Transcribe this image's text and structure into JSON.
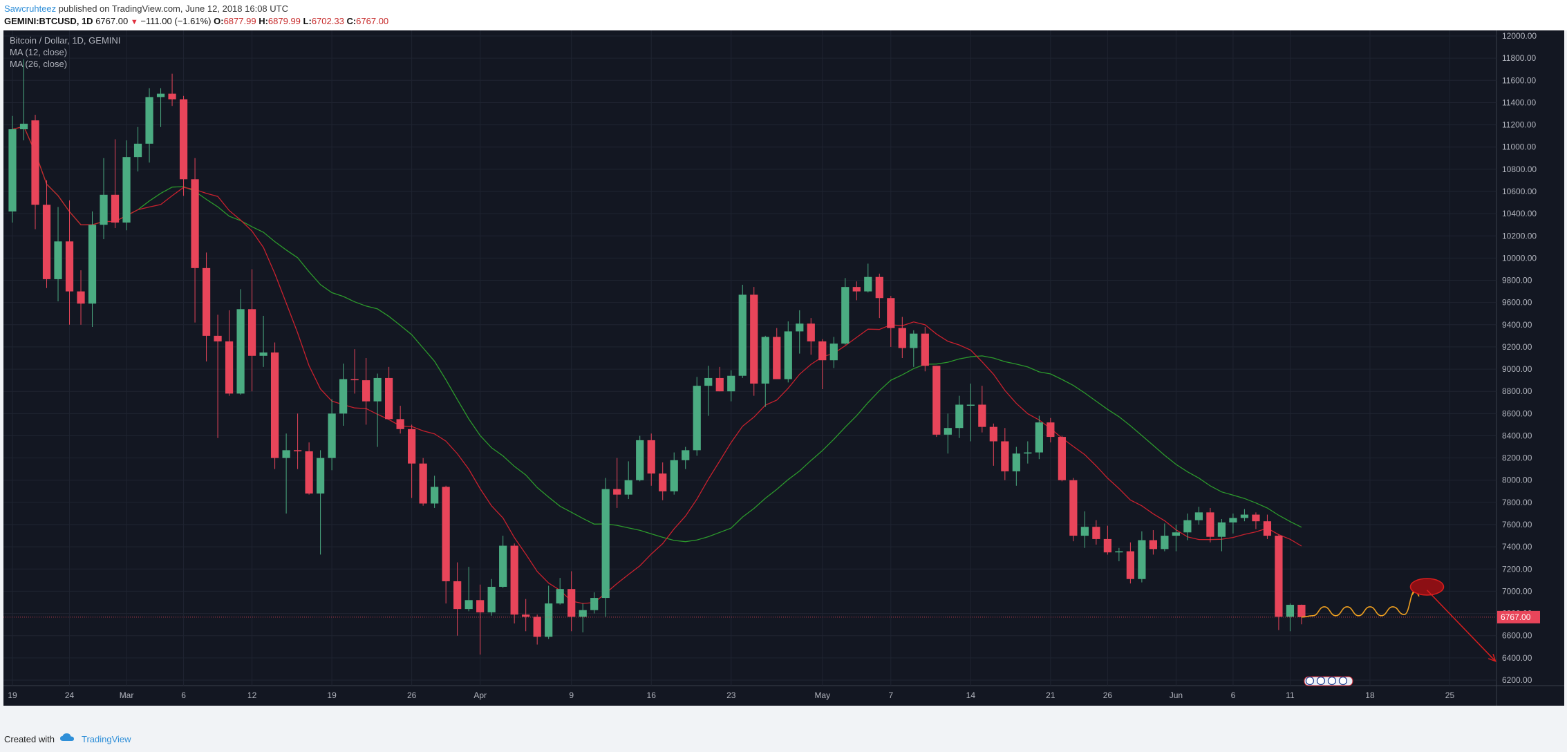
{
  "header": {
    "author": "Sawcruhteez",
    "published_text": "published on TradingView.com, June 12, 2018 16:08 UTC",
    "symbol": "GEMINI:BTCUSD, 1D",
    "last": "6767.00",
    "change": "−111.00 (−1.61%)",
    "o_label": "O:",
    "o_value": "6877.99",
    "h_label": "H:",
    "h_value": "6879.99",
    "l_label": "L:",
    "l_value": "6702.33",
    "c_label": "C:",
    "c_value": "6767.00"
  },
  "legend": {
    "title": "Bitcoin / Dollar, 1D, GEMINI",
    "ma12": "MA (12, close)",
    "ma26": "MA (26, close)"
  },
  "footer": {
    "created_with": "Created with",
    "brand": "TradingView"
  },
  "colors": {
    "background": "#131722",
    "grid": "#1f2431",
    "bull": "#4bac82",
    "bear": "#e8455a",
    "ma12": "#c9212e",
    "ma26": "#2c9a2c",
    "annotation_orange": "#f0a020",
    "annotation_red": "#d81e1e"
  },
  "chart_data": {
    "type": "candlestick",
    "title": "Bitcoin / Dollar, 1D, GEMINI",
    "y_axis_side": "right",
    "ylim": [
      6150,
      12050
    ],
    "y_ticks": [
      6200,
      6400,
      6600,
      6800,
      7000,
      7200,
      7400,
      7600,
      7800,
      8000,
      8200,
      8400,
      8600,
      8800,
      9000,
      9200,
      9400,
      9600,
      9800,
      10000,
      10200,
      10400,
      10600,
      10800,
      11000,
      11200,
      11400,
      11600,
      11800,
      12000
    ],
    "y_tick_labels": [
      "6200.00",
      "6400.00",
      "6600.00",
      "6800.00",
      "7000.00",
      "7200.00",
      "7400.00",
      "7600.00",
      "7800.00",
      "8000.00",
      "8200.00",
      "8400.00",
      "8600.00",
      "8800.00",
      "9000.00",
      "9200.00",
      "9400.00",
      "9600.00",
      "9800.00",
      "10000.00",
      "10200.00",
      "10400.00",
      "10600.00",
      "10800.00",
      "11000.00",
      "11200.00",
      "11400.00",
      "11600.00",
      "11800.00",
      "12000.00"
    ],
    "x_range": [
      "2018-02-19",
      "2018-06-28"
    ],
    "x_ticks": [
      {
        "date": "2018-02-19",
        "label": "19"
      },
      {
        "date": "2018-02-24",
        "label": "24"
      },
      {
        "date": "2018-03-01",
        "label": "Mar"
      },
      {
        "date": "2018-03-06",
        "label": "6"
      },
      {
        "date": "2018-03-12",
        "label": "12"
      },
      {
        "date": "2018-03-19",
        "label": "19"
      },
      {
        "date": "2018-03-26",
        "label": "26"
      },
      {
        "date": "2018-04-01",
        "label": "Apr"
      },
      {
        "date": "2018-04-09",
        "label": "9"
      },
      {
        "date": "2018-04-16",
        "label": "16"
      },
      {
        "date": "2018-04-23",
        "label": "23"
      },
      {
        "date": "2018-05-01",
        "label": "May"
      },
      {
        "date": "2018-05-07",
        "label": "7"
      },
      {
        "date": "2018-05-14",
        "label": "14"
      },
      {
        "date": "2018-05-21",
        "label": "21"
      },
      {
        "date": "2018-05-26",
        "label": "26"
      },
      {
        "date": "2018-06-01",
        "label": "Jun"
      },
      {
        "date": "2018-06-06",
        "label": "6"
      },
      {
        "date": "2018-06-11",
        "label": "11"
      },
      {
        "date": "2018-06-18",
        "label": "18"
      },
      {
        "date": "2018-06-25",
        "label": "25"
      }
    ],
    "candles": [
      {
        "d": "2018-02-19",
        "o": 10420,
        "h": 11280,
        "l": 10320,
        "c": 11160
      },
      {
        "d": "2018-02-20",
        "o": 11160,
        "h": 11790,
        "l": 11060,
        "c": 11210
      },
      {
        "d": "2018-02-21",
        "o": 11240,
        "h": 11290,
        "l": 10260,
        "c": 10480
      },
      {
        "d": "2018-02-22",
        "o": 10480,
        "h": 10700,
        "l": 9730,
        "c": 9810
      },
      {
        "d": "2018-02-23",
        "o": 9810,
        "h": 10460,
        "l": 9610,
        "c": 10150
      },
      {
        "d": "2018-02-24",
        "o": 10150,
        "h": 10520,
        "l": 9400,
        "c": 9700
      },
      {
        "d": "2018-02-25",
        "o": 9700,
        "h": 9890,
        "l": 9400,
        "c": 9590
      },
      {
        "d": "2018-02-26",
        "o": 9590,
        "h": 10420,
        "l": 9380,
        "c": 10300
      },
      {
        "d": "2018-02-27",
        "o": 10300,
        "h": 10900,
        "l": 10170,
        "c": 10570
      },
      {
        "d": "2018-02-28",
        "o": 10570,
        "h": 11070,
        "l": 10270,
        "c": 10320
      },
      {
        "d": "2018-03-01",
        "o": 10320,
        "h": 11060,
        "l": 10250,
        "c": 10910
      },
      {
        "d": "2018-03-02",
        "o": 10910,
        "h": 11180,
        "l": 10780,
        "c": 11030
      },
      {
        "d": "2018-03-03",
        "o": 11030,
        "h": 11530,
        "l": 10860,
        "c": 11450
      },
      {
        "d": "2018-03-04",
        "o": 11450,
        "h": 11530,
        "l": 11180,
        "c": 11480
      },
      {
        "d": "2018-03-05",
        "o": 11480,
        "h": 11660,
        "l": 11370,
        "c": 11430
      },
      {
        "d": "2018-03-06",
        "o": 11430,
        "h": 11460,
        "l": 10560,
        "c": 10710
      },
      {
        "d": "2018-03-07",
        "o": 10710,
        "h": 10900,
        "l": 9420,
        "c": 9910
      },
      {
        "d": "2018-03-08",
        "o": 9910,
        "h": 10050,
        "l": 9070,
        "c": 9300
      },
      {
        "d": "2018-03-09",
        "o": 9300,
        "h": 9490,
        "l": 8380,
        "c": 9250
      },
      {
        "d": "2018-03-10",
        "o": 9250,
        "h": 9530,
        "l": 8760,
        "c": 8780
      },
      {
        "d": "2018-03-11",
        "o": 8780,
        "h": 9720,
        "l": 8770,
        "c": 9540
      },
      {
        "d": "2018-03-12",
        "o": 9540,
        "h": 9900,
        "l": 8800,
        "c": 9120
      },
      {
        "d": "2018-03-13",
        "o": 9120,
        "h": 9480,
        "l": 9020,
        "c": 9150
      },
      {
        "d": "2018-03-14",
        "o": 9150,
        "h": 9240,
        "l": 8100,
        "c": 8200
      },
      {
        "d": "2018-03-15",
        "o": 8200,
        "h": 8420,
        "l": 7700,
        "c": 8270
      },
      {
        "d": "2018-03-16",
        "o": 8270,
        "h": 8600,
        "l": 8100,
        "c": 8260
      },
      {
        "d": "2018-03-17",
        "o": 8260,
        "h": 8340,
        "l": 7870,
        "c": 7880
      },
      {
        "d": "2018-03-18",
        "o": 7880,
        "h": 8270,
        "l": 7330,
        "c": 8200
      },
      {
        "d": "2018-03-19",
        "o": 8200,
        "h": 8730,
        "l": 8090,
        "c": 8600
      },
      {
        "d": "2018-03-20",
        "o": 8600,
        "h": 9050,
        "l": 8490,
        "c": 8910
      },
      {
        "d": "2018-03-21",
        "o": 8910,
        "h": 9180,
        "l": 8780,
        "c": 8900
      },
      {
        "d": "2018-03-22",
        "o": 8900,
        "h": 9100,
        "l": 8500,
        "c": 8710
      },
      {
        "d": "2018-03-23",
        "o": 8710,
        "h": 8960,
        "l": 8300,
        "c": 8920
      },
      {
        "d": "2018-03-24",
        "o": 8920,
        "h": 9020,
        "l": 8550,
        "c": 8550
      },
      {
        "d": "2018-03-25",
        "o": 8550,
        "h": 8670,
        "l": 8420,
        "c": 8460
      },
      {
        "d": "2018-03-26",
        "o": 8460,
        "h": 8500,
        "l": 7840,
        "c": 8150
      },
      {
        "d": "2018-03-27",
        "o": 8150,
        "h": 8200,
        "l": 7770,
        "c": 7790
      },
      {
        "d": "2018-03-28",
        "o": 7790,
        "h": 8040,
        "l": 7750,
        "c": 7940
      },
      {
        "d": "2018-03-29",
        "o": 7940,
        "h": 7950,
        "l": 6890,
        "c": 7090
      },
      {
        "d": "2018-03-30",
        "o": 7090,
        "h": 7260,
        "l": 6600,
        "c": 6840
      },
      {
        "d": "2018-03-31",
        "o": 6840,
        "h": 7220,
        "l": 6820,
        "c": 6920
      },
      {
        "d": "2018-04-01",
        "o": 6920,
        "h": 7060,
        "l": 6430,
        "c": 6810
      },
      {
        "d": "2018-04-02",
        "o": 6810,
        "h": 7110,
        "l": 6780,
        "c": 7040
      },
      {
        "d": "2018-04-03",
        "o": 7040,
        "h": 7500,
        "l": 7030,
        "c": 7410
      },
      {
        "d": "2018-04-04",
        "o": 7410,
        "h": 7430,
        "l": 6710,
        "c": 6790
      },
      {
        "d": "2018-04-05",
        "o": 6790,
        "h": 6930,
        "l": 6640,
        "c": 6770
      },
      {
        "d": "2018-04-06",
        "o": 6770,
        "h": 6790,
        "l": 6520,
        "c": 6590
      },
      {
        "d": "2018-04-07",
        "o": 6590,
        "h": 7050,
        "l": 6570,
        "c": 6890
      },
      {
        "d": "2018-04-08",
        "o": 6890,
        "h": 7120,
        "l": 6880,
        "c": 7020
      },
      {
        "d": "2018-04-09",
        "o": 7020,
        "h": 7180,
        "l": 6640,
        "c": 6770
      },
      {
        "d": "2018-04-10",
        "o": 6770,
        "h": 6890,
        "l": 6630,
        "c": 6830
      },
      {
        "d": "2018-04-11",
        "o": 6830,
        "h": 6990,
        "l": 6800,
        "c": 6940
      },
      {
        "d": "2018-04-12",
        "o": 6940,
        "h": 8020,
        "l": 6770,
        "c": 7920
      },
      {
        "d": "2018-04-13",
        "o": 7920,
        "h": 8200,
        "l": 7750,
        "c": 7870
      },
      {
        "d": "2018-04-14",
        "o": 7870,
        "h": 8170,
        "l": 7830,
        "c": 8000
      },
      {
        "d": "2018-04-15",
        "o": 8000,
        "h": 8400,
        "l": 7990,
        "c": 8360
      },
      {
        "d": "2018-04-16",
        "o": 8360,
        "h": 8420,
        "l": 7950,
        "c": 8060
      },
      {
        "d": "2018-04-17",
        "o": 8060,
        "h": 8160,
        "l": 7820,
        "c": 7900
      },
      {
        "d": "2018-04-18",
        "o": 7900,
        "h": 8250,
        "l": 7870,
        "c": 8180
      },
      {
        "d": "2018-04-19",
        "o": 8180,
        "h": 8300,
        "l": 8100,
        "c": 8270
      },
      {
        "d": "2018-04-20",
        "o": 8270,
        "h": 8930,
        "l": 8220,
        "c": 8850
      },
      {
        "d": "2018-04-21",
        "o": 8850,
        "h": 9030,
        "l": 8580,
        "c": 8920
      },
      {
        "d": "2018-04-22",
        "o": 8920,
        "h": 9020,
        "l": 8800,
        "c": 8800
      },
      {
        "d": "2018-04-23",
        "o": 8800,
        "h": 8990,
        "l": 8710,
        "c": 8940
      },
      {
        "d": "2018-04-24",
        "o": 8940,
        "h": 9760,
        "l": 8920,
        "c": 9670
      },
      {
        "d": "2018-04-25",
        "o": 9670,
        "h": 9740,
        "l": 8760,
        "c": 8870
      },
      {
        "d": "2018-04-26",
        "o": 8870,
        "h": 9300,
        "l": 8660,
        "c": 9290
      },
      {
        "d": "2018-04-27",
        "o": 9290,
        "h": 9370,
        "l": 8910,
        "c": 8910
      },
      {
        "d": "2018-04-28",
        "o": 8910,
        "h": 9430,
        "l": 8880,
        "c": 9340
      },
      {
        "d": "2018-04-29",
        "o": 9340,
        "h": 9530,
        "l": 9140,
        "c": 9410
      },
      {
        "d": "2018-04-30",
        "o": 9410,
        "h": 9460,
        "l": 9130,
        "c": 9250
      },
      {
        "d": "2018-05-01",
        "o": 9250,
        "h": 9270,
        "l": 8820,
        "c": 9080
      },
      {
        "d": "2018-05-02",
        "o": 9080,
        "h": 9290,
        "l": 9010,
        "c": 9230
      },
      {
        "d": "2018-05-03",
        "o": 9230,
        "h": 9820,
        "l": 9220,
        "c": 9740
      },
      {
        "d": "2018-05-04",
        "o": 9740,
        "h": 9790,
        "l": 9620,
        "c": 9700
      },
      {
        "d": "2018-05-05",
        "o": 9700,
        "h": 9950,
        "l": 9690,
        "c": 9830
      },
      {
        "d": "2018-05-06",
        "o": 9830,
        "h": 9860,
        "l": 9460,
        "c": 9640
      },
      {
        "d": "2018-05-07",
        "o": 9640,
        "h": 9660,
        "l": 9200,
        "c": 9370
      },
      {
        "d": "2018-05-08",
        "o": 9370,
        "h": 9470,
        "l": 9100,
        "c": 9190
      },
      {
        "d": "2018-05-09",
        "o": 9190,
        "h": 9350,
        "l": 9020,
        "c": 9320
      },
      {
        "d": "2018-05-10",
        "o": 9320,
        "h": 9380,
        "l": 8980,
        "c": 9030
      },
      {
        "d": "2018-05-11",
        "o": 9030,
        "h": 9030,
        "l": 8390,
        "c": 8410
      },
      {
        "d": "2018-05-12",
        "o": 8410,
        "h": 8600,
        "l": 8240,
        "c": 8470
      },
      {
        "d": "2018-05-13",
        "o": 8470,
        "h": 8760,
        "l": 8380,
        "c": 8680
      },
      {
        "d": "2018-05-14",
        "o": 8680,
        "h": 8870,
        "l": 8350,
        "c": 8680
      },
      {
        "d": "2018-05-15",
        "o": 8680,
        "h": 8850,
        "l": 8430,
        "c": 8480
      },
      {
        "d": "2018-05-16",
        "o": 8480,
        "h": 8510,
        "l": 8130,
        "c": 8350
      },
      {
        "d": "2018-05-17",
        "o": 8350,
        "h": 8470,
        "l": 8000,
        "c": 8080
      },
      {
        "d": "2018-05-18",
        "o": 8080,
        "h": 8300,
        "l": 7950,
        "c": 8240
      },
      {
        "d": "2018-05-19",
        "o": 8240,
        "h": 8350,
        "l": 8150,
        "c": 8250
      },
      {
        "d": "2018-05-20",
        "o": 8250,
        "h": 8580,
        "l": 8190,
        "c": 8520
      },
      {
        "d": "2018-05-21",
        "o": 8520,
        "h": 8560,
        "l": 8340,
        "c": 8390
      },
      {
        "d": "2018-05-22",
        "o": 8390,
        "h": 8400,
        "l": 7990,
        "c": 8000
      },
      {
        "d": "2018-05-23",
        "o": 8000,
        "h": 8020,
        "l": 7450,
        "c": 7500
      },
      {
        "d": "2018-05-24",
        "o": 7500,
        "h": 7720,
        "l": 7390,
        "c": 7580
      },
      {
        "d": "2018-05-25",
        "o": 7580,
        "h": 7640,
        "l": 7420,
        "c": 7470
      },
      {
        "d": "2018-05-26",
        "o": 7470,
        "h": 7590,
        "l": 7330,
        "c": 7350
      },
      {
        "d": "2018-05-27",
        "o": 7350,
        "h": 7390,
        "l": 7270,
        "c": 7360
      },
      {
        "d": "2018-05-28",
        "o": 7360,
        "h": 7440,
        "l": 7070,
        "c": 7110
      },
      {
        "d": "2018-05-29",
        "o": 7110,
        "h": 7540,
        "l": 7080,
        "c": 7460
      },
      {
        "d": "2018-05-30",
        "o": 7460,
        "h": 7550,
        "l": 7330,
        "c": 7380
      },
      {
        "d": "2018-05-31",
        "o": 7380,
        "h": 7610,
        "l": 7360,
        "c": 7500
      },
      {
        "d": "2018-06-01",
        "o": 7500,
        "h": 7600,
        "l": 7360,
        "c": 7530
      },
      {
        "d": "2018-06-02",
        "o": 7530,
        "h": 7700,
        "l": 7460,
        "c": 7640
      },
      {
        "d": "2018-06-03",
        "o": 7640,
        "h": 7760,
        "l": 7600,
        "c": 7710
      },
      {
        "d": "2018-06-04",
        "o": 7710,
        "h": 7750,
        "l": 7440,
        "c": 7490
      },
      {
        "d": "2018-06-05",
        "o": 7490,
        "h": 7650,
        "l": 7360,
        "c": 7620
      },
      {
        "d": "2018-06-06",
        "o": 7620,
        "h": 7700,
        "l": 7520,
        "c": 7660
      },
      {
        "d": "2018-06-07",
        "o": 7660,
        "h": 7740,
        "l": 7630,
        "c": 7690
      },
      {
        "d": "2018-06-08",
        "o": 7690,
        "h": 7710,
        "l": 7560,
        "c": 7630
      },
      {
        "d": "2018-06-09",
        "o": 7630,
        "h": 7690,
        "l": 7470,
        "c": 7500
      },
      {
        "d": "2018-06-10",
        "o": 7500,
        "h": 7510,
        "l": 6650,
        "c": 6770
      },
      {
        "d": "2018-06-11",
        "o": 6770,
        "h": 6890,
        "l": 6640,
        "c": 6878
      },
      {
        "d": "2018-06-12",
        "o": 6877.99,
        "h": 6879.99,
        "l": 6702.33,
        "c": 6767.0
      }
    ],
    "moving_averages": [
      {
        "name": "MA (12, close)",
        "color": "#c9212e"
      },
      {
        "name": "MA (26, close)",
        "color": "#2c9a2c"
      }
    ],
    "last_price": 6767.0,
    "last_price_label": "6767.00",
    "annotations": {
      "projected_path": [
        {
          "d": "2018-06-13",
          "p": 6780
        },
        {
          "d": "2018-06-14",
          "p": 6860
        },
        {
          "d": "2018-06-15",
          "p": 6780
        },
        {
          "d": "2018-06-16",
          "p": 6860
        },
        {
          "d": "2018-06-17",
          "p": 6780
        },
        {
          "d": "2018-06-18",
          "p": 6860
        },
        {
          "d": "2018-06-19",
          "p": 6780
        },
        {
          "d": "2018-06-20",
          "p": 6860
        },
        {
          "d": "2018-06-21",
          "p": 6790
        },
        {
          "d": "2018-06-22",
          "p": 7010
        }
      ],
      "target_ellipse": {
        "d": "2018-06-23",
        "p": 7040
      },
      "drop_arrow": {
        "from": {
          "d": "2018-06-23",
          "p": 7010
        },
        "to": {
          "d": "2018-06-29",
          "p": 6370
        }
      },
      "event_markers_date": "2018-06-12"
    }
  }
}
